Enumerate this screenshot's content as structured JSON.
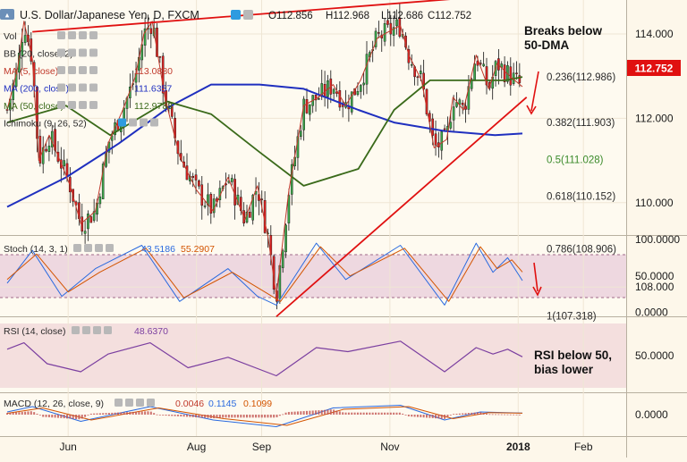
{
  "header": {
    "title": "U.S. Dollar/Japanese Yen, D, FXCM",
    "open": "O112.856",
    "high": "H112.968",
    "low": "L112.686",
    "close": "C112.752"
  },
  "overlay_legends": [
    {
      "label": "Vol",
      "value": "",
      "color": "#2a2a2a"
    },
    {
      "label": "BB (20, close, 2)",
      "value": "",
      "color": "#2a2a2a"
    },
    {
      "label": "MA (5, close)",
      "value": "113.0880",
      "color": "#c0392b"
    },
    {
      "label": "MA (200, close)",
      "value": "111.6357",
      "color": "#1f2fbf"
    },
    {
      "label": "MA (50, close)",
      "value": "112.9783",
      "color": "#3a6a1a"
    },
    {
      "label": "Ichimoku (9, 26, 52)",
      "value": "",
      "color": "#2a2a2a"
    }
  ],
  "annotations": {
    "breaks_line1": "Breaks below",
    "breaks_line2": "50-DMA",
    "rsi_line1": "RSI below 50,",
    "rsi_line2": "bias lower"
  },
  "price_tag": {
    "value": "112.752",
    "color": "#e01010"
  },
  "fib_levels": [
    {
      "label": "0.236(112.986)",
      "price": 112.986,
      "color": "#2a2a2a"
    },
    {
      "label": "0.382(111.903)",
      "price": 111.903,
      "color": "#2a2a2a"
    },
    {
      "label": "0.5(111.028)",
      "price": 111.028,
      "color": "#3a8a2a"
    },
    {
      "label": "0.618(110.152)",
      "price": 110.152,
      "color": "#2a2a2a"
    },
    {
      "label": "0.786(108.906)",
      "price": 108.906,
      "color": "#2a2a2a"
    },
    {
      "label": "1(107.318)",
      "price": 107.318,
      "color": "#2a2a2a"
    }
  ],
  "stoch_legend": {
    "label": "Stoch (14, 3, 1)",
    "k": "43.5186",
    "d": "55.2907",
    "k_color": "#2a6adf",
    "d_color": "#d35400"
  },
  "rsi_legend": {
    "label": "RSI (14, close)",
    "value": "48.6370",
    "color": "#7b3fa0"
  },
  "macd_legend": {
    "label": "MACD (12, 26, close, 9)",
    "hist": "0.0046",
    "macd": "0.1145",
    "signal": "0.1099",
    "hist_color": "#c0392b",
    "macd_color": "#2a6adf",
    "signal_color": "#d35400"
  },
  "chart_data": {
    "type": "candlestick",
    "title": "U.S. Dollar/Japanese Yen, D, FXCM",
    "x_axis": {
      "ticks": [
        "Jun",
        "Aug",
        "Sep",
        "Nov",
        "2018",
        "Feb"
      ]
    },
    "price_axis": {
      "ticks": [
        "114.000",
        "112.000",
        "110.000",
        "108.000"
      ],
      "range": [
        106.8,
        114.6
      ]
    },
    "stoch_axis": {
      "ticks": [
        "100.0000",
        "50.0000",
        "0.0000"
      ],
      "range": [
        0,
        100
      ]
    },
    "rsi_axis": {
      "ticks": [
        "50.0000"
      ],
      "range": [
        15,
        85
      ]
    },
    "macd_axis": {
      "ticks": [
        "0.0000"
      ],
      "range": [
        -1.3,
        1.1
      ]
    },
    "close_series": [
      {
        "date": "2017-05-03",
        "close": 112.2
      },
      {
        "date": "2017-05-08",
        "close": 113.2
      },
      {
        "date": "2017-05-11",
        "close": 114.3
      },
      {
        "date": "2017-05-15",
        "close": 113.4
      },
      {
        "date": "2017-05-18",
        "close": 111.0
      },
      {
        "date": "2017-05-23",
        "close": 111.6
      },
      {
        "date": "2017-05-29",
        "close": 110.9
      },
      {
        "date": "2017-06-02",
        "close": 110.4
      },
      {
        "date": "2017-06-07",
        "close": 109.5
      },
      {
        "date": "2017-06-14",
        "close": 109.8
      },
      {
        "date": "2017-06-20",
        "close": 111.4
      },
      {
        "date": "2017-06-27",
        "close": 112.2
      },
      {
        "date": "2017-07-03",
        "close": 113.0
      },
      {
        "date": "2017-07-07",
        "close": 114.0
      },
      {
        "date": "2017-07-11",
        "close": 114.3
      },
      {
        "date": "2017-07-17",
        "close": 112.5
      },
      {
        "date": "2017-07-24",
        "close": 111.1
      },
      {
        "date": "2017-08-01",
        "close": 110.3
      },
      {
        "date": "2017-08-09",
        "close": 109.8
      },
      {
        "date": "2017-08-16",
        "close": 110.6
      },
      {
        "date": "2017-08-24",
        "close": 109.6
      },
      {
        "date": "2017-08-30",
        "close": 110.4
      },
      {
        "date": "2017-09-04",
        "close": 109.2
      },
      {
        "date": "2017-09-08",
        "close": 107.8
      },
      {
        "date": "2017-09-14",
        "close": 110.3
      },
      {
        "date": "2017-09-21",
        "close": 112.3
      },
      {
        "date": "2017-09-28",
        "close": 112.5
      },
      {
        "date": "2017-10-05",
        "close": 112.8
      },
      {
        "date": "2017-10-11",
        "close": 112.3
      },
      {
        "date": "2017-10-18",
        "close": 112.9
      },
      {
        "date": "2017-10-26",
        "close": 113.9
      },
      {
        "date": "2017-11-02",
        "close": 114.1
      },
      {
        "date": "2017-11-06",
        "close": 114.2
      },
      {
        "date": "2017-11-10",
        "close": 113.5
      },
      {
        "date": "2017-11-16",
        "close": 112.9
      },
      {
        "date": "2017-11-22",
        "close": 111.3
      },
      {
        "date": "2017-11-28",
        "close": 111.5
      },
      {
        "date": "2017-12-01",
        "close": 112.5
      },
      {
        "date": "2017-12-06",
        "close": 112.2
      },
      {
        "date": "2017-12-12",
        "close": 113.5
      },
      {
        "date": "2017-12-18",
        "close": 112.7
      },
      {
        "date": "2017-12-22",
        "close": 113.3
      },
      {
        "date": "2017-12-28",
        "close": 113.0
      },
      {
        "date": "2018-01-03",
        "close": 112.75
      }
    ],
    "ma50": [
      {
        "date": "2017-05-03",
        "value": 111.9
      },
      {
        "date": "2017-05-31",
        "value": 112.3
      },
      {
        "date": "2017-06-21",
        "value": 111.6
      },
      {
        "date": "2017-07-18",
        "value": 112.4
      },
      {
        "date": "2017-08-08",
        "value": 112.1
      },
      {
        "date": "2017-08-31",
        "value": 111.2
      },
      {
        "date": "2017-09-21",
        "value": 110.4
      },
      {
        "date": "2017-10-17",
        "value": 110.8
      },
      {
        "date": "2017-11-03",
        "value": 112.2
      },
      {
        "date": "2017-11-20",
        "value": 112.9
      },
      {
        "date": "2017-12-07",
        "value": 112.9
      },
      {
        "date": "2017-12-26",
        "value": 112.9
      },
      {
        "date": "2018-01-03",
        "value": 112.98
      }
    ],
    "ma200": [
      {
        "date": "2017-05-03",
        "value": 109.9
      },
      {
        "date": "2017-05-31",
        "value": 110.6
      },
      {
        "date": "2017-06-25",
        "value": 111.4
      },
      {
        "date": "2017-07-20",
        "value": 112.3
      },
      {
        "date": "2017-08-08",
        "value": 112.8
      },
      {
        "date": "2017-08-31",
        "value": 112.8
      },
      {
        "date": "2017-09-21",
        "value": 112.7
      },
      {
        "date": "2017-10-17",
        "value": 112.2
      },
      {
        "date": "2017-11-03",
        "value": 111.9
      },
      {
        "date": "2017-11-27",
        "value": 111.7
      },
      {
        "date": "2017-12-21",
        "value": 111.6
      },
      {
        "date": "2018-01-03",
        "value": 111.64
      }
    ],
    "trendlines": [
      {
        "name": "rising-support",
        "from": {
          "date": "2017-09-08",
          "price": 107.3
        },
        "to": {
          "date": "2018-01-05",
          "price": 112.5
        }
      },
      {
        "name": "upper-resistance",
        "from": {
          "date": "2017-05-15",
          "price": 114.05
        },
        "to": {
          "date": "2018-01-01",
          "price": 114.95
        }
      }
    ],
    "stoch_k": [
      {
        "date": "2017-05-03",
        "value": 40
      },
      {
        "date": "2017-05-15",
        "value": 85
      },
      {
        "date": "2017-05-29",
        "value": 22
      },
      {
        "date": "2017-06-14",
        "value": 60
      },
      {
        "date": "2017-07-06",
        "value": 92
      },
      {
        "date": "2017-07-24",
        "value": 15
      },
      {
        "date": "2017-08-16",
        "value": 60
      },
      {
        "date": "2017-08-30",
        "value": 22
      },
      {
        "date": "2017-09-08",
        "value": 10
      },
      {
        "date": "2017-09-27",
        "value": 95
      },
      {
        "date": "2017-10-11",
        "value": 45
      },
      {
        "date": "2017-11-06",
        "value": 92
      },
      {
        "date": "2017-11-27",
        "value": 10
      },
      {
        "date": "2017-12-12",
        "value": 95
      },
      {
        "date": "2017-12-20",
        "value": 55
      },
      {
        "date": "2017-12-27",
        "value": 75
      },
      {
        "date": "2018-01-03",
        "value": 43.5
      }
    ],
    "stoch_d": [
      {
        "date": "2017-05-03",
        "value": 45
      },
      {
        "date": "2017-05-17",
        "value": 80
      },
      {
        "date": "2017-06-01",
        "value": 28
      },
      {
        "date": "2017-06-16",
        "value": 55
      },
      {
        "date": "2017-07-08",
        "value": 88
      },
      {
        "date": "2017-07-26",
        "value": 20
      },
      {
        "date": "2017-08-18",
        "value": 55
      },
      {
        "date": "2017-09-10",
        "value": 15
      },
      {
        "date": "2017-09-29",
        "value": 90
      },
      {
        "date": "2017-10-13",
        "value": 50
      },
      {
        "date": "2017-11-08",
        "value": 88
      },
      {
        "date": "2017-11-29",
        "value": 15
      },
      {
        "date": "2017-12-14",
        "value": 90
      },
      {
        "date": "2017-12-22",
        "value": 60
      },
      {
        "date": "2017-12-29",
        "value": 72
      },
      {
        "date": "2018-01-03",
        "value": 55.3
      }
    ],
    "rsi": [
      {
        "date": "2017-05-03",
        "value": 58
      },
      {
        "date": "2017-05-11",
        "value": 66
      },
      {
        "date": "2017-05-22",
        "value": 40
      },
      {
        "date": "2017-06-07",
        "value": 30
      },
      {
        "date": "2017-06-20",
        "value": 52
      },
      {
        "date": "2017-07-10",
        "value": 66
      },
      {
        "date": "2017-07-28",
        "value": 35
      },
      {
        "date": "2017-08-16",
        "value": 48
      },
      {
        "date": "2017-09-08",
        "value": 25
      },
      {
        "date": "2017-09-27",
        "value": 60
      },
      {
        "date": "2017-10-12",
        "value": 55
      },
      {
        "date": "2017-11-06",
        "value": 68
      },
      {
        "date": "2017-11-27",
        "value": 30
      },
      {
        "date": "2017-12-12",
        "value": 60
      },
      {
        "date": "2017-12-20",
        "value": 52
      },
      {
        "date": "2017-12-27",
        "value": 58
      },
      {
        "date": "2018-01-03",
        "value": 48.6
      }
    ],
    "macd": [
      {
        "date": "2017-05-03",
        "value": 0.2
      },
      {
        "date": "2017-05-15",
        "value": 0.6
      },
      {
        "date": "2017-06-07",
        "value": -0.5
      },
      {
        "date": "2017-07-10",
        "value": 0.6
      },
      {
        "date": "2017-08-09",
        "value": -0.4
      },
      {
        "date": "2017-09-08",
        "value": -0.9
      },
      {
        "date": "2017-10-05",
        "value": 0.5
      },
      {
        "date": "2017-11-06",
        "value": 0.7
      },
      {
        "date": "2017-11-27",
        "value": -0.4
      },
      {
        "date": "2017-12-14",
        "value": 0.2
      },
      {
        "date": "2018-01-03",
        "value": 0.1145
      }
    ],
    "signal": [
      {
        "date": "2017-05-03",
        "value": 0.1
      },
      {
        "date": "2017-05-20",
        "value": 0.5
      },
      {
        "date": "2017-06-12",
        "value": -0.4
      },
      {
        "date": "2017-07-14",
        "value": 0.5
      },
      {
        "date": "2017-08-14",
        "value": -0.3
      },
      {
        "date": "2017-09-13",
        "value": -0.8
      },
      {
        "date": "2017-10-10",
        "value": 0.4
      },
      {
        "date": "2017-11-10",
        "value": 0.6
      },
      {
        "date": "2017-12-01",
        "value": -0.3
      },
      {
        "date": "2017-12-18",
        "value": 0.15
      },
      {
        "date": "2018-01-03",
        "value": 0.1099
      }
    ]
  }
}
